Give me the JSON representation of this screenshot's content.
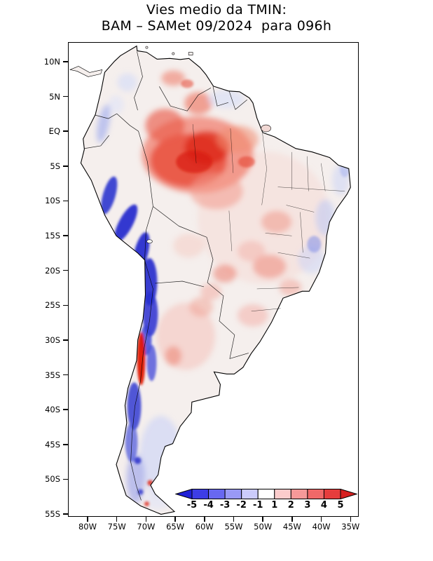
{
  "title": {
    "line1": "Vies medio da TMIN:",
    "line2": "BAM – SAMet 09/2024  para 096h"
  },
  "axes": {
    "lat_ticks": [
      "10N",
      "5N",
      "EQ",
      "5S",
      "10S",
      "15S",
      "20S",
      "25S",
      "30S",
      "35S",
      "40S",
      "45S",
      "50S",
      "55S"
    ],
    "lon_ticks": [
      "80W",
      "75W",
      "70W",
      "65W",
      "60W",
      "55W",
      "50W",
      "45W",
      "40W",
      "35W"
    ]
  },
  "colorbar": {
    "tick_labels": [
      "-5",
      "-4",
      "-3",
      "-2",
      "-1",
      "1",
      "2",
      "3",
      "4",
      "5"
    ],
    "segment_colors": [
      "#1f1fd6",
      "#3d3de6",
      "#6868f0",
      "#9999f6",
      "#ccccfb",
      "#ffffff",
      "#fbcccc",
      "#f69999",
      "#f06868",
      "#e63d3d",
      "#d61f1f"
    ]
  },
  "chart_data": {
    "type": "heatmap",
    "title": "Vies medio da TMIN: BAM – SAMet 09/2024 para 096h",
    "variable": "Vies medio da TMIN",
    "model": "BAM – SAMet",
    "month": "09/2024",
    "forecast_hour": "096h",
    "region": "South America",
    "lon_range": [
      "80W",
      "35W"
    ],
    "lat_range": [
      "10N",
      "55S"
    ],
    "colorbar_levels": [
      -5,
      -4,
      -3,
      -2,
      -1,
      1,
      2,
      3,
      4,
      5
    ],
    "colorbar_colors": [
      "#1f1fd6",
      "#3d3de6",
      "#6868f0",
      "#9999f6",
      "#ccccfb",
      "#ffffff",
      "#fbcccc",
      "#f69999",
      "#f06868",
      "#e63d3d",
      "#d61f1f"
    ],
    "legend_position": "bottom-right inside axes",
    "grid": false,
    "notable_regions": [
      {
        "region": "Amazon basin (central/northern Brazil)",
        "bias": "+2 to +5 (strong warm bias)"
      },
      {
        "region": "Andes cordillera (Peru, Bolivia, northern Chile, 5S-30S)",
        "bias": "-3 to -5 (strong cold bias)"
      },
      {
        "region": "Central Chile (~29S-36S)",
        "bias": "+3 to +5 (narrow warm strip)"
      },
      {
        "region": "Southern Chile / Patagonian Andes (36S-52S)",
        "bias": "-1 to -4 (cold)"
      },
      {
        "region": "Central Argentina (28S-38S)",
        "bias": "+1 to +2 (light warm)"
      },
      {
        "region": "Eastern Brazil highlands (40W-45W, 13S-22S)",
        "bias": "-1 to -2 (patchy cold)"
      },
      {
        "region": "Guianas and northeastern Brazil coast",
        "bias": "0 to -1 (slightly cold)"
      },
      {
        "region": "Central-west Brazil and Paraguay",
        "bias": "+1 to +3 (patchy warm)"
      }
    ]
  }
}
